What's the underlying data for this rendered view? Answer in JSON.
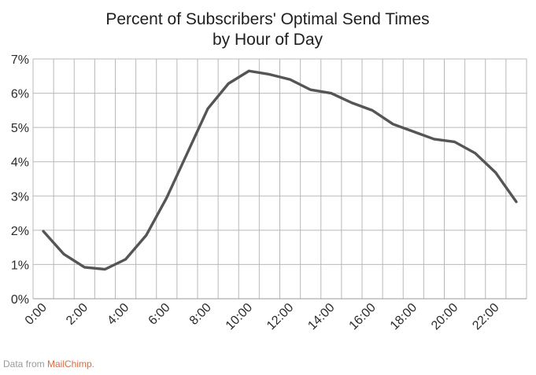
{
  "chart_data": {
    "type": "line",
    "title": [
      "Percent of Subscribers' Optimal Send Times",
      "by Hour of Day"
    ],
    "xlabel": "",
    "ylabel": "",
    "x_tick_labels": [
      "0:00",
      "2:00",
      "4:00",
      "6:00",
      "8:00",
      "10:00",
      "12:00",
      "14:00",
      "16:00",
      "18:00",
      "20:00",
      "22:00"
    ],
    "y_tick_labels": [
      "0%",
      "1%",
      "2%",
      "3%",
      "4%",
      "5%",
      "6%",
      "7%"
    ],
    "ylim": [
      0,
      7
    ],
    "y_unit": "%",
    "grid": true,
    "x": [
      0,
      1,
      2,
      3,
      4,
      5,
      6,
      7,
      8,
      9,
      10,
      11,
      12,
      13,
      14,
      15,
      16,
      17,
      18,
      19,
      20,
      21,
      22,
      23
    ],
    "series": [
      {
        "color": "#555555",
        "values": [
          1.97,
          1.3,
          0.92,
          0.86,
          1.15,
          1.85,
          2.95,
          4.25,
          5.55,
          6.28,
          6.65,
          6.55,
          6.4,
          6.1,
          6.0,
          5.72,
          5.5,
          5.1,
          4.88,
          4.66,
          4.58,
          4.25,
          3.68,
          2.83
        ]
      }
    ]
  },
  "source_note": {
    "prefix": "Data from ",
    "brand": "MailChimp",
    "suffix": ".",
    "brand_color": "#e06a3c"
  }
}
